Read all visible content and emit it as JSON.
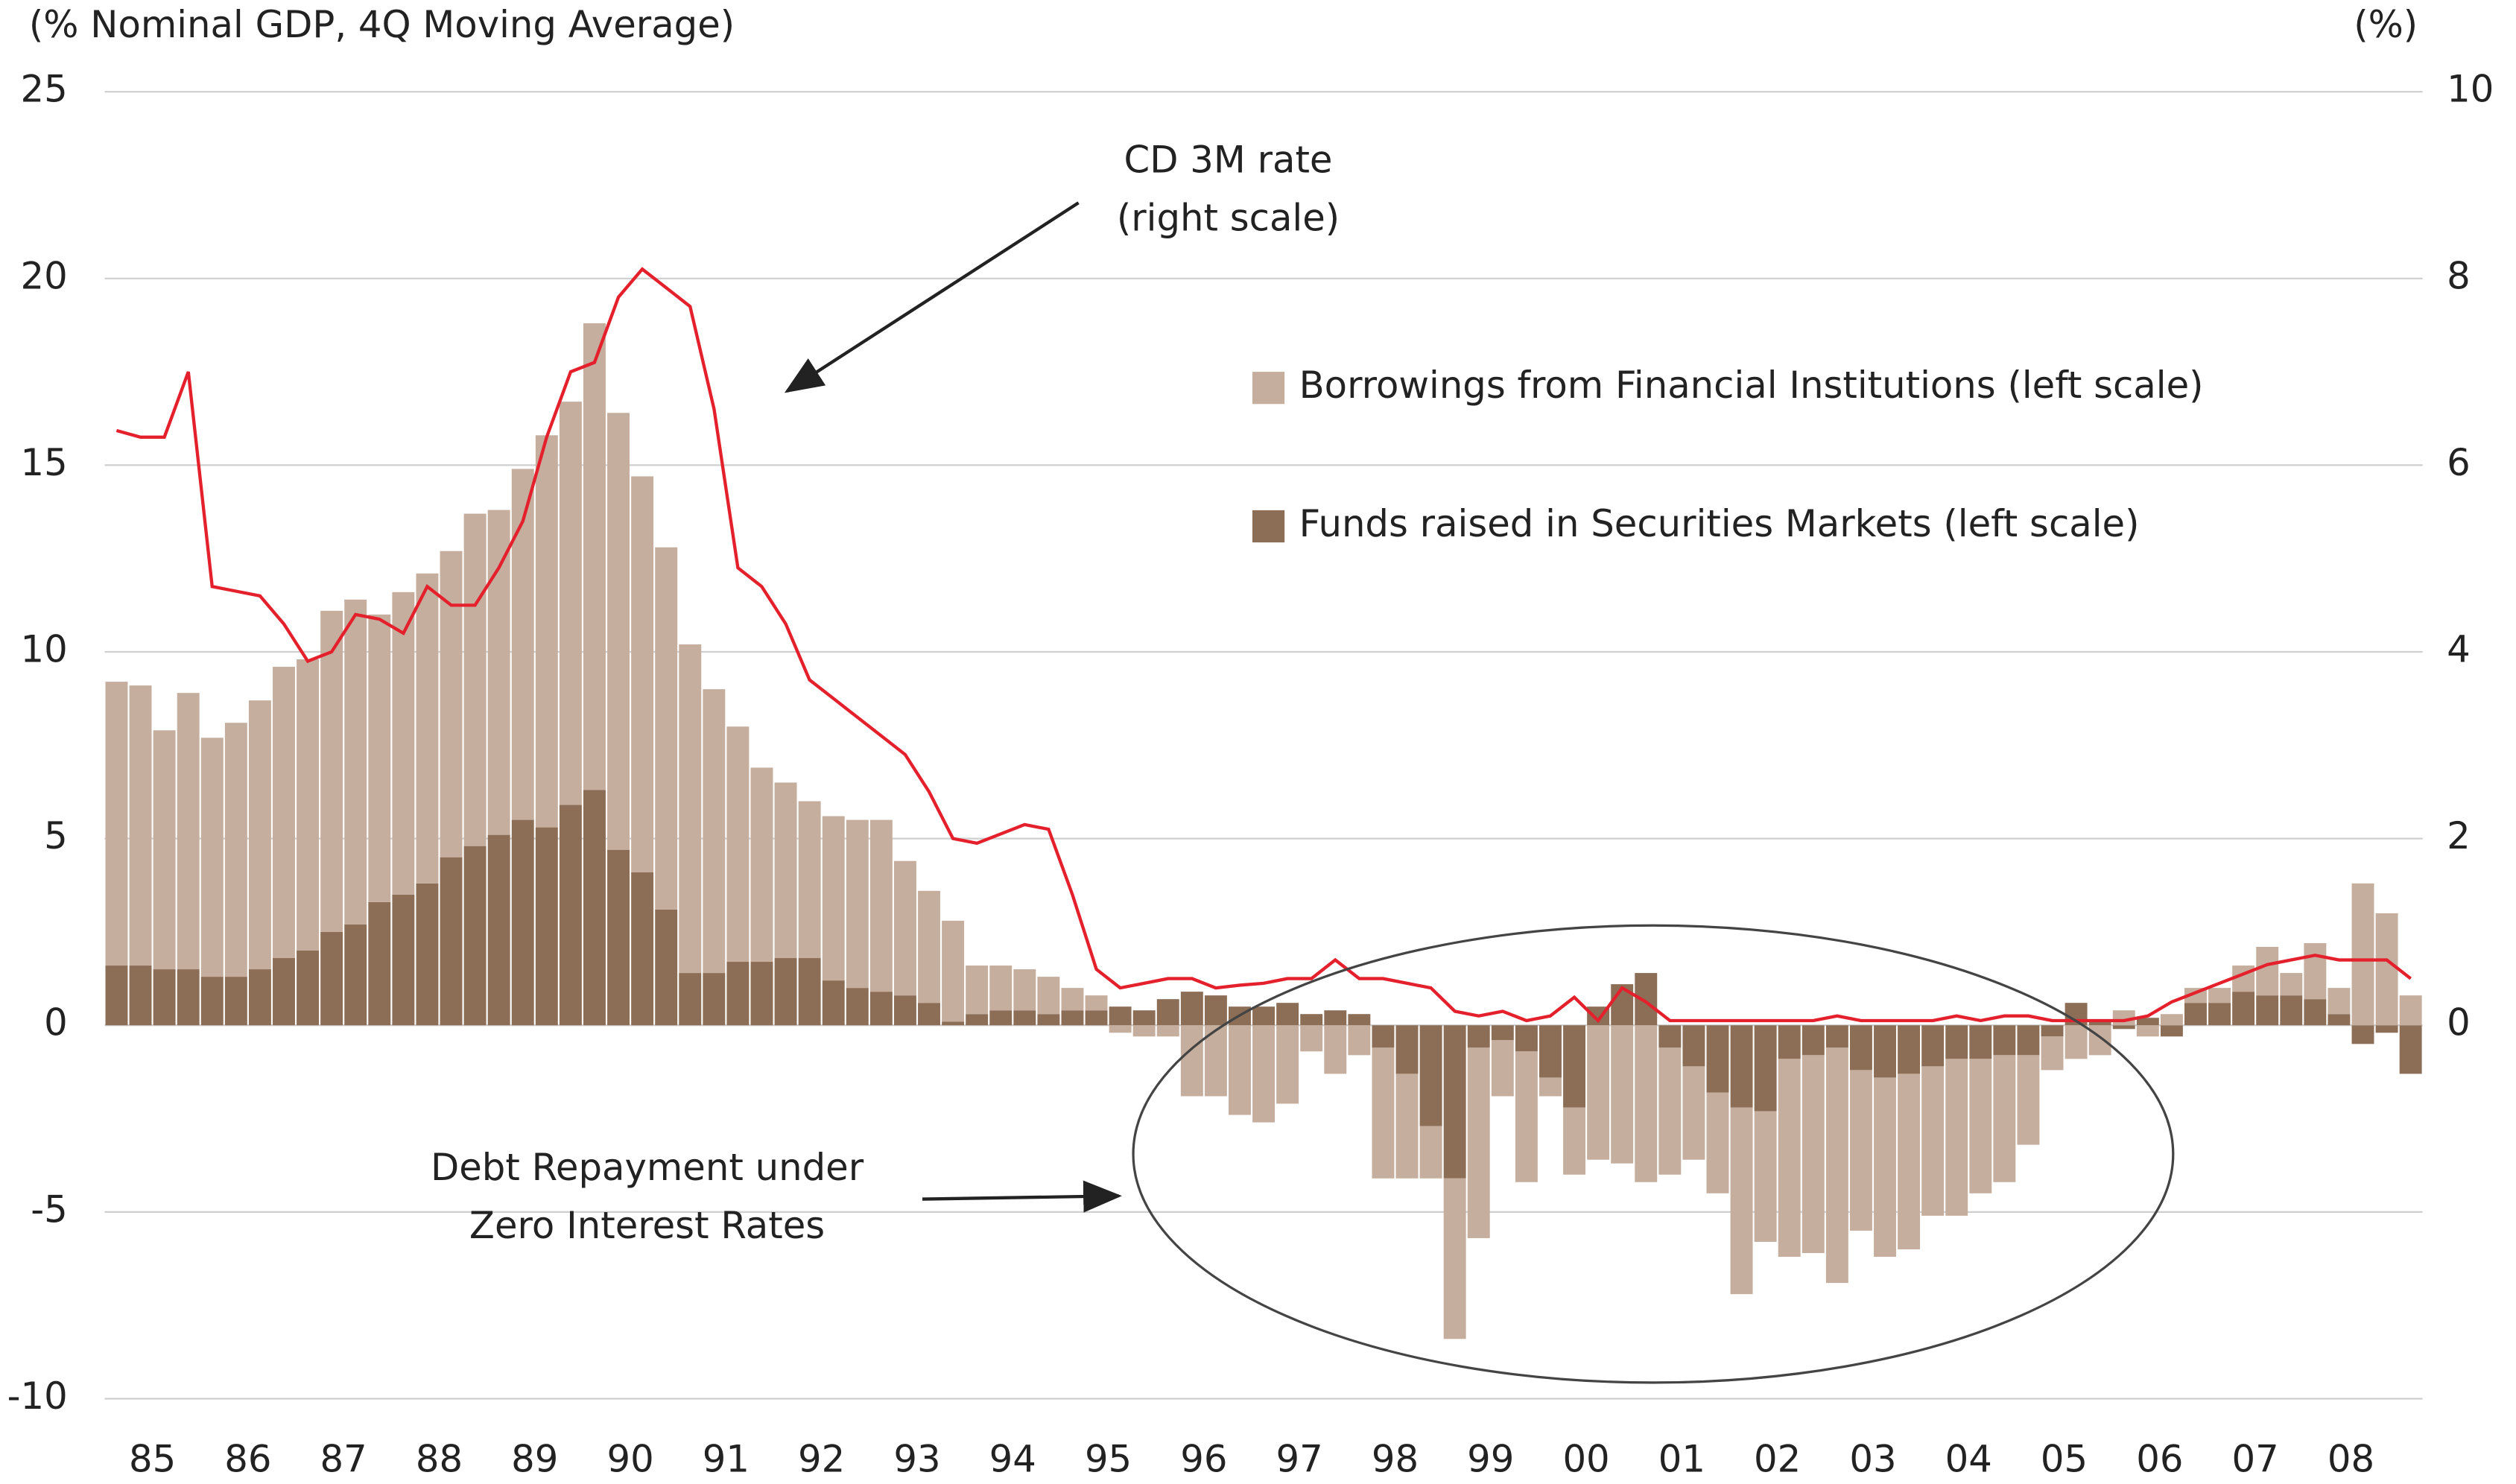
{
  "chart_data": {
    "type": "bar",
    "ylabel": "(% Nominal GDP, 4Q Moving Average)",
    "y2label": "(%)",
    "annotations": [
      "CD 3M rate",
      "(right scale)",
      "Debt Repayment under",
      "Zero Interest Rates"
    ],
    "categories": [
      "85",
      null,
      null,
      null,
      "86",
      null,
      null,
      null,
      "87",
      null,
      null,
      null,
      "88",
      null,
      null,
      null,
      "89",
      null,
      null,
      null,
      "90",
      null,
      null,
      null,
      "91",
      null,
      null,
      null,
      "92",
      null,
      null,
      null,
      "93",
      null,
      null,
      null,
      "94",
      null,
      null,
      null,
      "95",
      null,
      null,
      null,
      "96",
      null,
      null,
      null,
      "97",
      null,
      null,
      null,
      "98",
      null,
      null,
      null,
      "99",
      null,
      null,
      null,
      "00",
      null,
      null,
      null,
      "01",
      null,
      null,
      null,
      "02",
      null,
      null,
      null,
      "03",
      null,
      null,
      null,
      "04",
      null,
      null,
      null,
      "05",
      null,
      null,
      null,
      "06",
      null,
      null,
      null,
      "07",
      null,
      null,
      null,
      "08",
      null,
      null,
      null,
      null
    ],
    "series": [
      {
        "name": "Borrowings from Financial Institutions (left scale)",
        "type": "bar",
        "color": "#c5ae9d",
        "values": [
          7.6,
          7.5,
          6.4,
          7.4,
          6.4,
          6.8,
          7.2,
          7.8,
          7.8,
          8.6,
          8.7,
          7.7,
          8.1,
          8.3,
          8.2,
          8.9,
          8.7,
          9.4,
          10.5,
          10.8,
          12.5,
          11.7,
          10.6,
          9.7,
          8.8,
          7.6,
          6.3,
          5.2,
          4.7,
          4.2,
          4.4,
          4.5,
          4.6,
          3.6,
          3.0,
          2.7,
          1.3,
          1.2,
          1.1,
          1.0,
          0.6,
          0.4,
          -0.2,
          -0.3,
          -0.3,
          -1.9,
          -1.9,
          -2.4,
          -2.6,
          -2.1,
          -0.7,
          -1.3,
          -0.8,
          -3.5,
          -2.8,
          -1.4,
          -4.3,
          -5.1,
          -1.5,
          -3.5,
          -0.5,
          -1.8,
          -3.6,
          -3.7,
          -4.2,
          -3.4,
          -2.5,
          -2.7,
          -5.0,
          -3.5,
          -5.3,
          -5.3,
          -6.3,
          -4.3,
          -4.8,
          -4.7,
          -4.0,
          -4.2,
          -3.6,
          -3.4,
          -2.4,
          -0.9,
          -0.9,
          -0.8,
          0.4,
          -0.3,
          0.3,
          0.4,
          0.4,
          0.7,
          1.3,
          0.6,
          1.5,
          0.7,
          3.8,
          3.0,
          0.8
        ]
      },
      {
        "name": "Funds raised in Securities Markets (left scale)",
        "type": "bar",
        "color": "#8c6d56",
        "values": [
          1.6,
          1.6,
          1.5,
          1.5,
          1.3,
          1.3,
          1.5,
          1.8,
          2.0,
          2.5,
          2.7,
          3.3,
          3.5,
          3.8,
          4.5,
          4.8,
          5.1,
          5.5,
          5.3,
          5.9,
          6.3,
          4.7,
          4.1,
          3.1,
          1.4,
          1.4,
          1.7,
          1.7,
          1.8,
          1.8,
          1.2,
          1.0,
          0.9,
          0.8,
          0.6,
          0.1,
          0.3,
          0.4,
          0.4,
          0.3,
          0.4,
          0.4,
          0.5,
          0.4,
          0.7,
          0.9,
          0.8,
          0.5,
          0.5,
          0.6,
          0.3,
          0.4,
          0.3,
          -0.6,
          -1.3,
          -2.7,
          -4.1,
          -0.6,
          -0.4,
          -0.7,
          -1.4,
          -2.2,
          0.5,
          1.1,
          1.4,
          -0.6,
          -1.1,
          -1.8,
          -2.2,
          -2.3,
          -0.9,
          -0.8,
          -0.6,
          -1.2,
          -1.4,
          -1.3,
          -1.1,
          -0.9,
          -0.9,
          -0.8,
          -0.8,
          -0.3,
          0.6,
          0.1,
          -0.1,
          0.2,
          -0.3,
          0.6,
          0.6,
          0.9,
          0.8,
          0.8,
          0.7,
          0.3,
          -0.5,
          -0.2,
          -1.3
        ]
      },
      {
        "type": "line",
        "axis": "y2",
        "color": "#e3202b",
        "values": [
          6.37,
          6.3,
          6.3,
          7.0,
          4.7,
          4.65,
          4.6,
          4.3,
          3.9,
          4.0,
          4.4,
          4.35,
          4.2,
          4.7,
          4.5,
          4.5,
          4.9,
          5.4,
          6.3,
          7.0,
          7.1,
          7.8,
          8.1,
          7.9,
          7.7,
          6.6,
          4.9,
          4.7,
          4.3,
          3.7,
          3.5,
          3.3,
          3.1,
          2.9,
          2.5,
          2.0,
          1.95,
          2.05,
          2.15,
          2.1,
          1.4,
          0.6,
          0.4,
          0.45,
          0.5,
          0.5,
          0.4,
          0.43,
          0.45,
          0.5,
          0.5,
          0.7,
          0.5,
          0.5,
          0.45,
          0.4,
          0.15,
          0.1,
          0.15,
          0.05,
          0.1,
          0.3,
          0.05,
          0.4,
          0.25,
          0.05,
          0.05,
          0.05,
          0.05,
          0.05,
          0.05,
          0.05,
          0.1,
          0.05,
          0.05,
          0.05,
          0.05,
          0.1,
          0.05,
          0.1,
          0.1,
          0.05,
          0.05,
          0.05,
          0.05,
          0.1,
          0.25,
          0.35,
          0.45,
          0.55,
          0.65,
          0.7,
          0.75,
          0.7,
          0.7,
          0.7,
          0.5
        ]
      }
    ],
    "ylim": [
      -10,
      25
    ],
    "yticks": [
      25,
      20,
      15,
      10,
      5,
      0,
      -5,
      -10
    ],
    "y2lim": [
      -4,
      10
    ],
    "y2ticks": [
      10,
      8,
      6,
      4,
      2,
      0
    ],
    "grid": true
  }
}
